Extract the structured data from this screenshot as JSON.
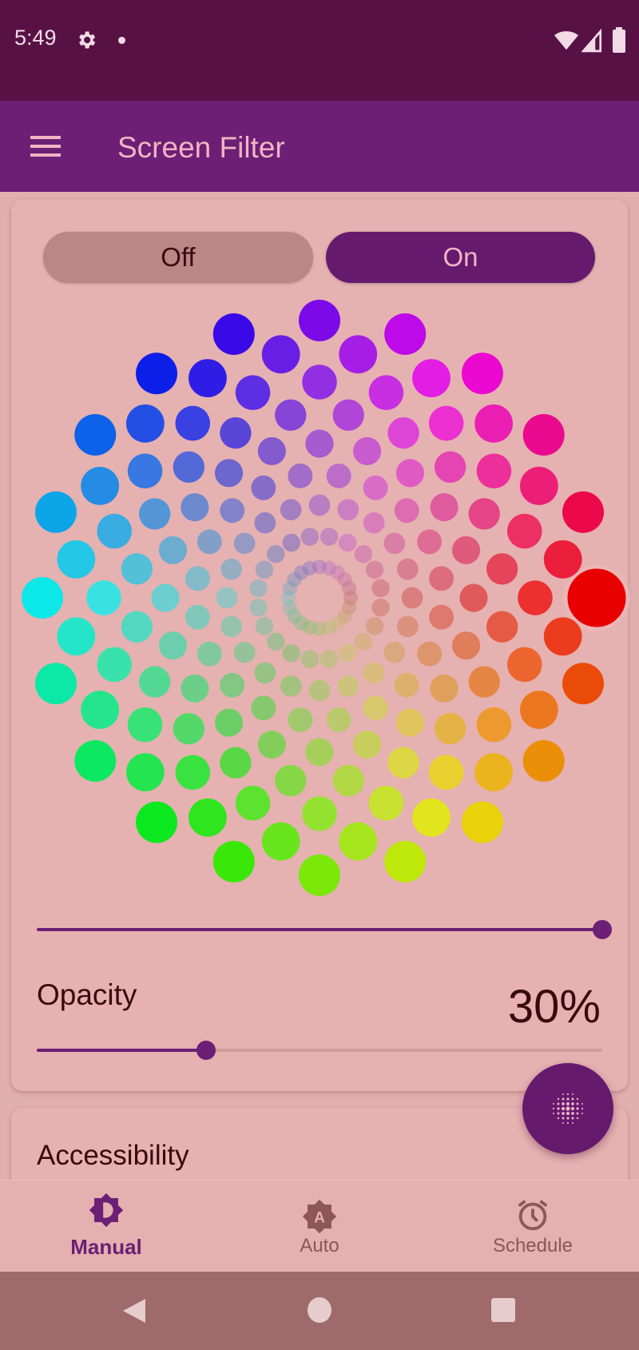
{
  "status_bar": {
    "time": "5:49",
    "icons": [
      "gear-icon",
      "dot-icon",
      "wifi-icon",
      "signal-icon",
      "battery-icon"
    ]
  },
  "app_bar": {
    "title": "Screen Filter",
    "menu_icon": "hamburger-icon"
  },
  "toggle": {
    "off_label": "Off",
    "on_label": "On",
    "selected": "On"
  },
  "color_wheel": {
    "hues_per_ring": 20,
    "rings": 9,
    "selected": {
      "hue_degrees": 0,
      "ring": "outermost"
    },
    "selected_color": "#e80000"
  },
  "intensity_slider": {
    "value_percent": 100
  },
  "opacity": {
    "label": "Opacity",
    "value_text": "30%",
    "value_percent": 30
  },
  "accessibility": {
    "title": "Accessibility"
  },
  "fab": {
    "icon": "dots-filter-icon"
  },
  "bottom_nav": {
    "items": [
      {
        "label": "Manual",
        "icon": "brightness-manual-icon",
        "active": true
      },
      {
        "label": "Auto",
        "icon": "brightness-auto-icon",
        "active": false
      },
      {
        "label": "Schedule",
        "icon": "alarm-clock-icon",
        "active": false
      }
    ]
  },
  "colors": {
    "status_bar": "#581145",
    "app_bar": "#6c1f74",
    "accent": "#6c1f74",
    "title_text": "#f0b4c4",
    "background": "#e2afaf",
    "inactive": "#8e5656"
  }
}
